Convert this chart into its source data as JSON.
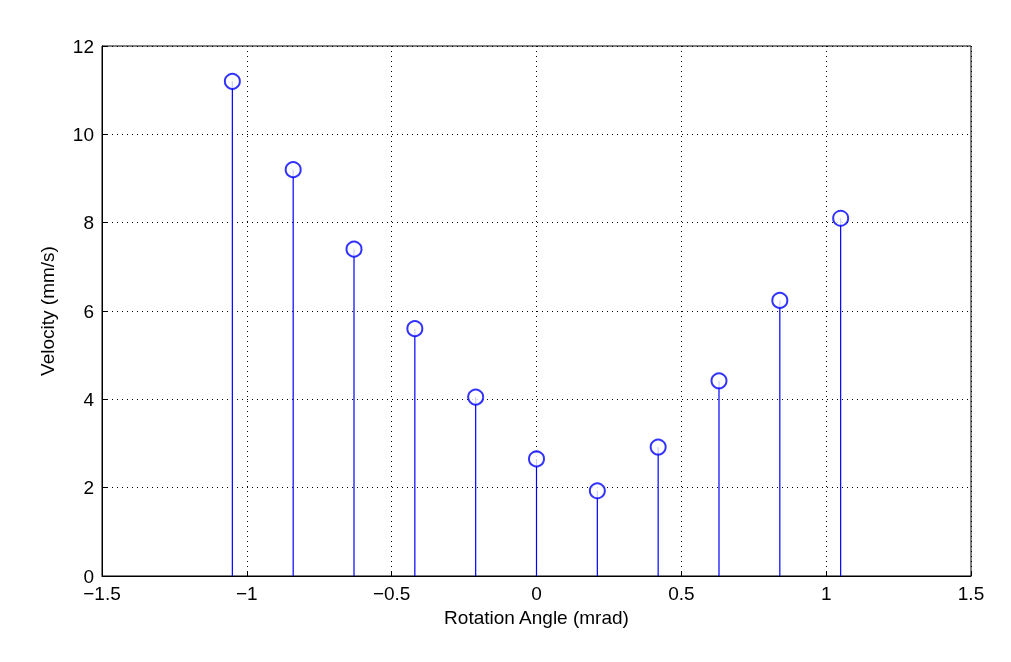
{
  "chart_data": {
    "type": "lollipop",
    "xlabel": "Rotation Angle (mrad)",
    "ylabel": "Velocity (mm/s)",
    "x": [
      -1.05,
      -0.84,
      -0.63,
      -0.42,
      -0.21,
      0,
      0.21,
      0.42,
      0.63,
      0.84,
      1.05
    ],
    "series": [
      {
        "color": "#0000ff",
        "values": [
          11.2,
          9.2,
          7.4,
          5.6,
          4.05,
          2.65,
          1.93,
          2.92,
          4.42,
          6.24,
          8.1
        ]
      }
    ],
    "xlim": [
      -1.5,
      1.5
    ],
    "xticks": [
      {
        "value": -1.5,
        "label": "−1.5"
      },
      {
        "value": -1,
        "label": "−1"
      },
      {
        "value": -0.5,
        "label": "−0.5"
      },
      0,
      0.5,
      1,
      1.5
    ],
    "ylim": [
      0,
      12
    ],
    "yticks": [
      0,
      2,
      4,
      6,
      8,
      10,
      12
    ],
    "grid": true,
    "marker": "circle"
  }
}
